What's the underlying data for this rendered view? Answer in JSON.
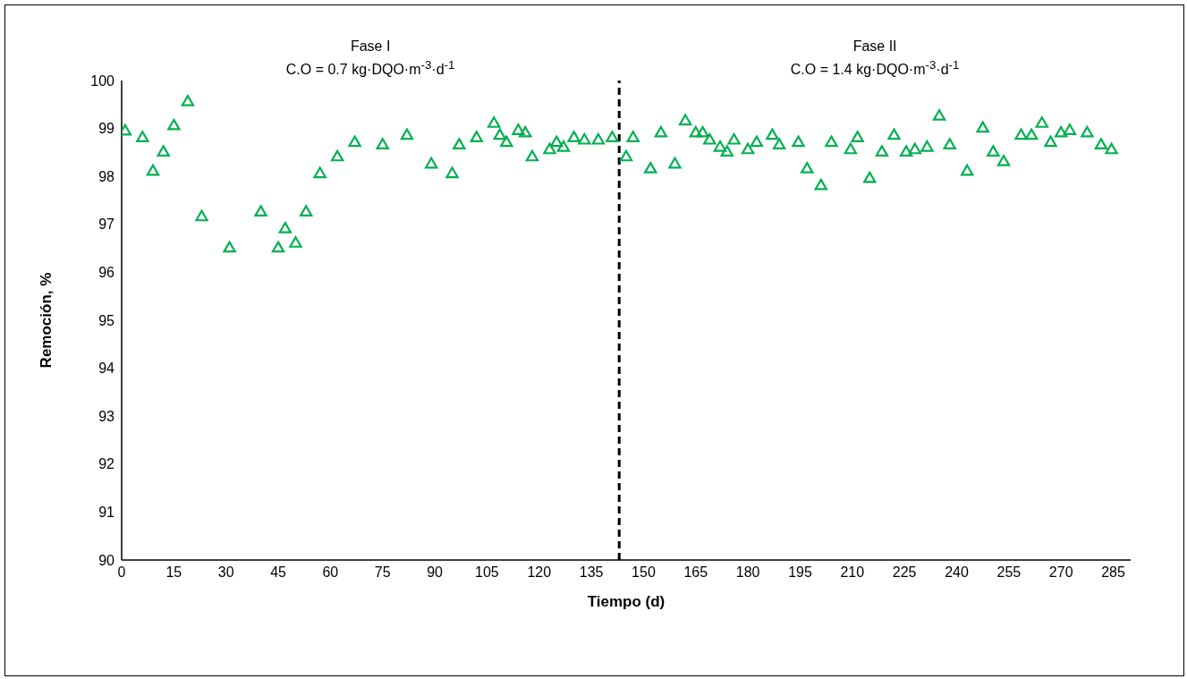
{
  "chart_data": {
    "type": "scatter",
    "xlabel": "Tiempo (d)",
    "ylabel": "Remoción, %",
    "annotations": [
      "Fase I\nC.O = 0.7 kg·DQO·m$^{-3}$·d$^{-1}$",
      "Fase II\nC.O = 1.4 kg·DQO·m$^{-3}$·d$^{-1}$"
    ],
    "x": [
      1,
      6,
      9,
      12,
      15,
      19,
      23,
      31,
      40,
      45,
      47,
      50,
      53,
      57,
      62,
      67,
      75,
      82,
      89,
      95,
      97,
      102,
      107,
      108.7,
      110.6,
      114,
      116,
      118,
      123,
      125,
      127,
      130,
      133,
      137,
      141,
      145,
      147,
      152,
      155,
      159,
      162,
      165,
      167,
      169,
      172,
      174,
      176,
      180,
      182.5,
      187,
      189,
      194.5,
      197,
      201,
      204,
      209.5,
      211.5,
      215,
      218.5,
      222,
      225.5,
      228,
      231.5,
      235,
      238,
      243,
      247.5,
      250.5,
      253.5,
      258.5,
      261.5,
      264.5,
      267,
      270,
      272.5,
      277.5,
      281.5,
      284.5
    ],
    "series": [
      {
        "color": "#00b050",
        "values": [
          98.94,
          98.8,
          98.1,
          98.5,
          99.05,
          99.55,
          97.15,
          96.5,
          97.25,
          96.5,
          96.9,
          96.6,
          97.25,
          98.05,
          98.4,
          98.7,
          98.65,
          98.85,
          98.25,
          98.05,
          98.65,
          98.8,
          99.1,
          98.85,
          98.7,
          98.95,
          98.9,
          98.4,
          98.55,
          98.7,
          98.6,
          98.8,
          98.75,
          98.75,
          98.8,
          98.4,
          98.8,
          98.15,
          98.9,
          98.25,
          99.15,
          98.9,
          98.9,
          98.75,
          98.6,
          98.5,
          98.75,
          98.55,
          98.7,
          98.85,
          98.65,
          98.7,
          98.15,
          97.8,
          98.7,
          98.55,
          98.8,
          97.95,
          98.5,
          98.85,
          98.5,
          98.55,
          98.6,
          99.25,
          98.65,
          98.1,
          99.0,
          98.5,
          98.3,
          98.85,
          98.85,
          99.1,
          98.7,
          98.9,
          98.95,
          98.9,
          98.65,
          98.55
        ]
      }
    ],
    "xlim": [
      0,
      290
    ],
    "xticks": [
      0,
      15,
      30,
      45,
      60,
      75,
      90,
      105,
      120,
      135,
      150,
      165,
      180,
      195,
      210,
      225,
      240,
      255,
      270,
      285
    ],
    "ylim": [
      90,
      100
    ],
    "yticks": [
      90,
      91,
      92,
      93,
      94,
      95,
      96,
      97,
      98,
      99,
      100
    ],
    "ref_lines": [
      {
        "axis": "x",
        "value": 143,
        "color": "#000000",
        "line_style": "dashed"
      }
    ],
    "grid": false,
    "legend": false,
    "marker": "triangle"
  }
}
